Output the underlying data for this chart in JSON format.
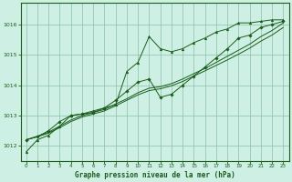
{
  "title": "Graphe pression niveau de la mer (hPa)",
  "background_color": "#cef0e4",
  "plot_bg_color": "#cef0e4",
  "grid_color": "#8abfa8",
  "line_color": "#1a5c1a",
  "xlim": [
    -0.5,
    23.5
  ],
  "ylim": [
    1011.5,
    1016.7
  ],
  "yticks": [
    1012,
    1013,
    1014,
    1015,
    1016
  ],
  "xticks": [
    0,
    1,
    2,
    3,
    4,
    5,
    6,
    7,
    8,
    9,
    10,
    11,
    12,
    13,
    14,
    15,
    16,
    17,
    18,
    19,
    20,
    21,
    22,
    23
  ],
  "hours": [
    0,
    1,
    2,
    3,
    4,
    5,
    6,
    7,
    8,
    9,
    10,
    11,
    12,
    13,
    14,
    15,
    16,
    17,
    18,
    19,
    20,
    21,
    22,
    23
  ],
  "series1_jagged": [
    1011.8,
    1012.2,
    1012.35,
    1012.65,
    1013.0,
    1013.05,
    1013.15,
    1013.25,
    1013.35,
    1014.45,
    1014.75,
    1015.6,
    1015.2,
    1015.1,
    1015.2,
    1015.4,
    1015.55,
    1015.75,
    1015.85,
    1016.05,
    1016.05,
    1016.1,
    1016.15,
    1016.15
  ],
  "series2_mid": [
    1012.2,
    1012.3,
    1012.5,
    1012.8,
    1013.0,
    1013.05,
    1013.1,
    1013.25,
    1013.5,
    1013.8,
    1014.1,
    1014.2,
    1013.6,
    1013.7,
    1014.0,
    1014.3,
    1014.6,
    1014.9,
    1015.2,
    1015.55,
    1015.65,
    1015.9,
    1016.0,
    1016.1
  ],
  "series3_linear": [
    1012.2,
    1012.32,
    1012.45,
    1012.65,
    1012.85,
    1013.0,
    1013.1,
    1013.2,
    1013.38,
    1013.55,
    1013.75,
    1013.9,
    1013.95,
    1014.05,
    1014.2,
    1014.38,
    1014.55,
    1014.75,
    1014.95,
    1015.15,
    1015.35,
    1015.6,
    1015.8,
    1016.05
  ],
  "series4_linear2": [
    1012.2,
    1012.3,
    1012.42,
    1012.6,
    1012.8,
    1012.95,
    1013.05,
    1013.15,
    1013.32,
    1013.5,
    1013.68,
    1013.82,
    1013.88,
    1013.98,
    1014.12,
    1014.3,
    1014.47,
    1014.65,
    1014.83,
    1015.02,
    1015.22,
    1015.45,
    1015.65,
    1015.9
  ]
}
